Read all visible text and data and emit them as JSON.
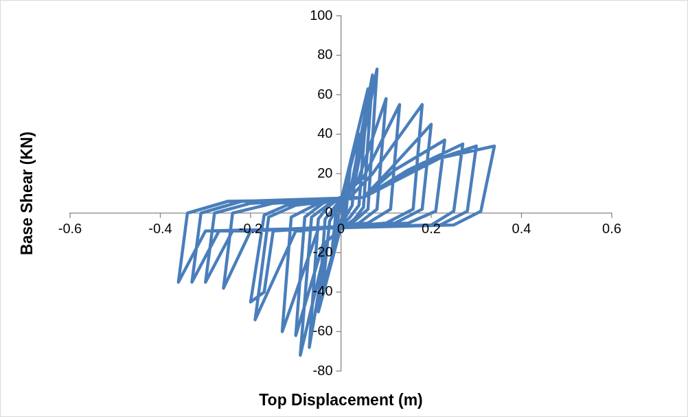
{
  "chart_data": {
    "type": "line",
    "xlabel": "Top Displacement (m)",
    "ylabel": "Base Shear (KN)",
    "xlim": [
      -0.6,
      0.6
    ],
    "xticks": [
      -0.6,
      -0.4,
      -0.2,
      0,
      0.2,
      0.4,
      0.6
    ],
    "ylim": [
      -80,
      100
    ],
    "yticks": [
      -80,
      -60,
      -40,
      -20,
      0,
      20,
      40,
      60,
      80,
      100
    ],
    "grid": false,
    "legend": false,
    "marker": "none",
    "line_style": "solid",
    "series": [
      {
        "color": "#4a7ebb",
        "x": [
          0,
          0.01,
          0.005,
          -0.01,
          -0.005,
          0.02,
          0.012,
          0,
          -0.02,
          -0.012,
          0,
          0.04,
          0.025,
          0,
          -0.04,
          -0.025,
          0,
          0.06,
          0.04,
          0.02,
          0,
          -0.05,
          -0.035,
          0,
          0.02,
          0.07,
          0.05,
          0.03,
          0,
          -0.03,
          -0.07,
          -0.05,
          -0.03,
          0,
          0.03,
          0.08,
          0.06,
          0.03,
          0,
          -0.03,
          -0.09,
          -0.065,
          -0.03,
          0,
          0.04,
          0.1,
          0.08,
          0.04,
          0,
          -0.04,
          -0.1,
          -0.08,
          -0.04,
          0,
          0.05,
          0.13,
          0.11,
          0.06,
          -0.05,
          -0.13,
          -0.11,
          -0.05,
          0.02,
          0.07,
          0.18,
          0.16,
          0.1,
          -0.1,
          -0.19,
          -0.16,
          -0.1,
          0.05,
          0.1,
          0.2,
          0.18,
          0.12,
          -0.15,
          -0.17,
          -0.2,
          -0.17,
          -0.12,
          0.05,
          0.12,
          0.23,
          0.21,
          0.15,
          -0.2,
          -0.26,
          -0.24,
          -0.15,
          0.05,
          0.15,
          0.27,
          0.25,
          0.2,
          -0.24,
          -0.3,
          -0.28,
          -0.2,
          0.05,
          0.18,
          0.3,
          0.28,
          0.22,
          -0.27,
          -0.33,
          -0.31,
          -0.22,
          0.05,
          0.22,
          0.34,
          0.31,
          0.25,
          -0.3,
          -0.36,
          -0.34,
          -0.25,
          0
        ],
        "values": [
          0,
          15,
          0,
          -12,
          0,
          22,
          2,
          -4,
          -20,
          -2,
          5,
          40,
          4,
          -6,
          -38,
          -4,
          6,
          63,
          4,
          -2,
          -7,
          -50,
          -3,
          7,
          10,
          70,
          3,
          -3,
          -8,
          -14,
          -68,
          -3,
          3,
          8,
          15,
          73,
          2,
          -4,
          -8,
          -14,
          -72,
          -2,
          4,
          8,
          18,
          58,
          2,
          -5,
          -8,
          -16,
          -62,
          -2,
          5,
          8,
          18,
          55,
          2,
          -5,
          -8,
          -60,
          -2,
          5,
          8,
          20,
          55,
          2,
          -5,
          -9,
          -54,
          -2,
          4,
          8,
          20,
          45,
          2,
          -5,
          -9,
          -40,
          -45,
          -1,
          4,
          8,
          22,
          37,
          1,
          -5,
          -9,
          -38,
          0,
          5,
          8,
          22,
          35,
          1,
          -6,
          -9,
          -35,
          0,
          5,
          8,
          25,
          34,
          1,
          -6,
          -9,
          -35,
          0,
          6,
          8,
          28,
          34,
          1,
          -6,
          -9,
          -35,
          0,
          6,
          7
        ]
      }
    ]
  }
}
